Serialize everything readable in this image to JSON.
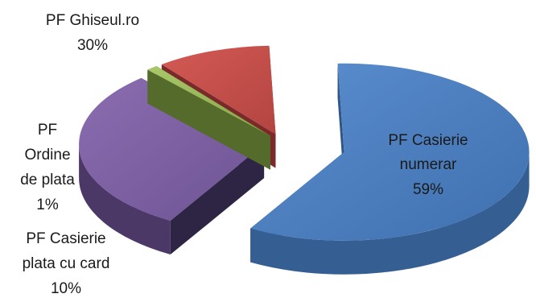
{
  "chart_data": {
    "type": "pie",
    "style": "3d-exploded",
    "slices": [
      {
        "key": "casierie-numerar",
        "label_lines": [
          "PF Casierie",
          "numerar"
        ],
        "percent_label": "59%",
        "value": 59,
        "color": "#4f81bd"
      },
      {
        "key": "ghiseul",
        "label_lines": [
          "PF Ghiseul.ro"
        ],
        "percent_label": "30%",
        "value": 30,
        "color": "#8064a2"
      },
      {
        "key": "ordine-plata",
        "label_lines": [
          "PF",
          "Ordine",
          "de plata"
        ],
        "percent_label": "1%",
        "value": 1,
        "color": "#9bbb59"
      },
      {
        "key": "casierie-card",
        "label_lines": [
          "PF Casierie",
          "plata cu card"
        ],
        "percent_label": "10%",
        "value": 10,
        "color": "#c0504d"
      }
    ]
  }
}
